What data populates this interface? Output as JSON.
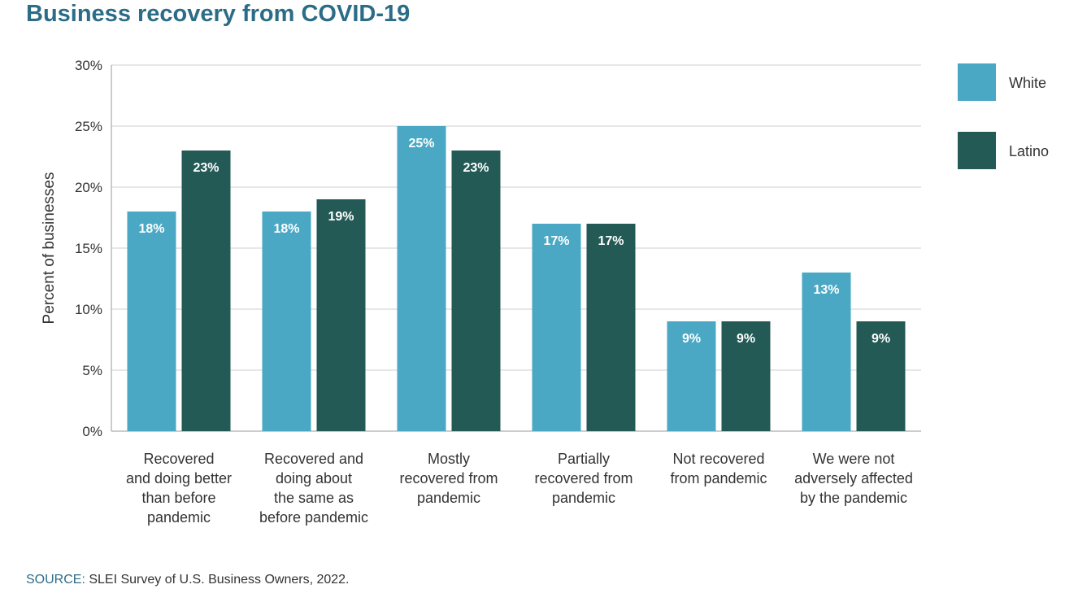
{
  "title": "Business recovery from COVID-19",
  "source": {
    "label": "SOURCE:",
    "text": " SLEI Survey of U.S. Business Owners, 2022."
  },
  "chart_data": {
    "type": "bar",
    "title": "Business recovery from COVID-19",
    "ylabel": "Percent of businesses",
    "xlabel": "",
    "ylim": [
      0,
      30
    ],
    "yticks": [
      "0%",
      "5%",
      "10%",
      "15%",
      "20%",
      "25%",
      "30%"
    ],
    "grid": true,
    "legend_position": "right",
    "categories": [
      [
        "Recovered",
        "and doing better",
        "than before",
        "pandemic"
      ],
      [
        "Recovered and",
        "doing about",
        "the same as",
        "before pandemic"
      ],
      [
        "Mostly",
        "recovered from",
        "pandemic"
      ],
      [
        "Partially",
        "recovered from",
        "pandemic"
      ],
      [
        "Not recovered",
        "from pandemic"
      ],
      [
        "We were not",
        "adversely affected",
        "by the pandemic"
      ]
    ],
    "series": [
      {
        "name": "White",
        "color": "#4aa8c4",
        "values": [
          18,
          18,
          25,
          17,
          9,
          13
        ],
        "labels": [
          "18%",
          "18%",
          "25%",
          "17%",
          "9%",
          "13%"
        ]
      },
      {
        "name": "Latino",
        "color": "#235a56",
        "values": [
          23,
          19,
          23,
          17,
          9,
          9
        ],
        "labels": [
          "23%",
          "19%",
          "23%",
          "17%",
          "9%",
          "9%"
        ]
      }
    ]
  }
}
